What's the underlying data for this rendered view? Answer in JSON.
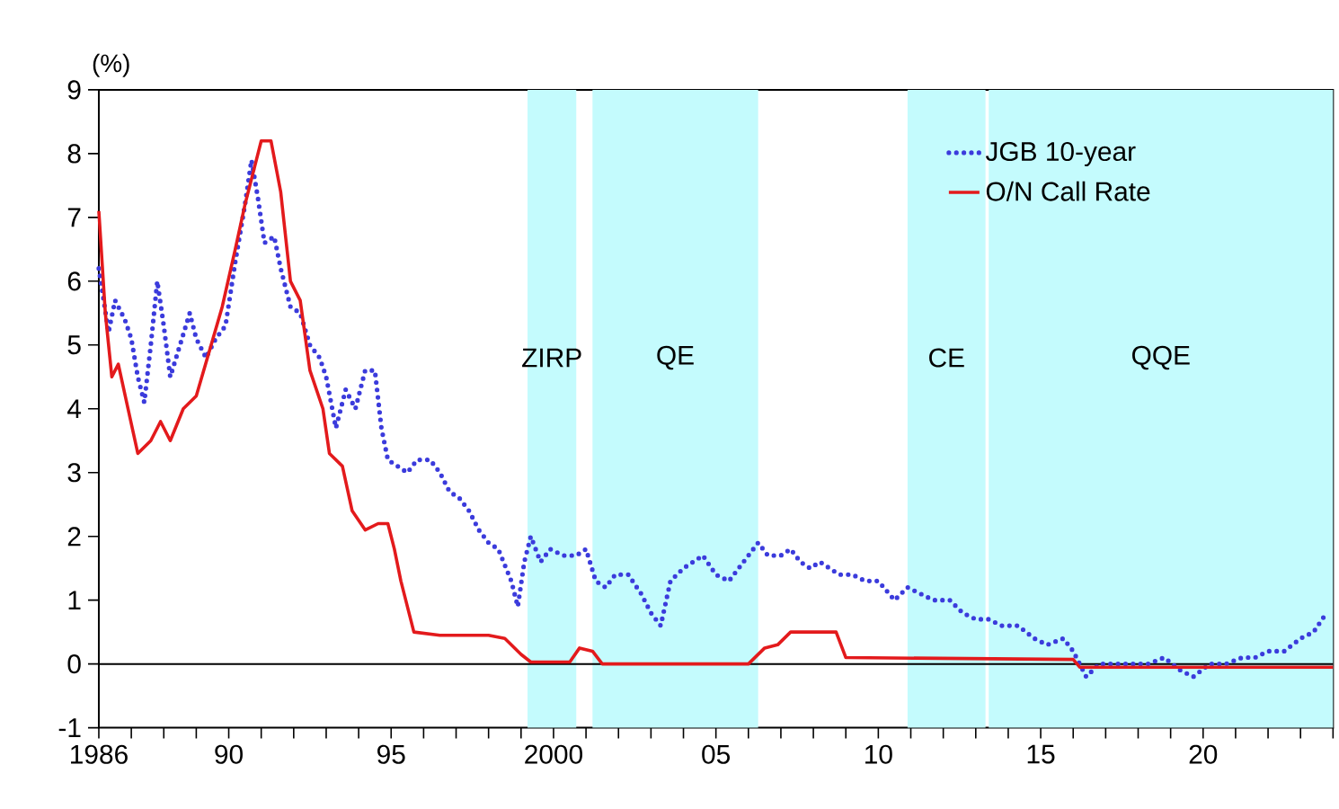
{
  "chart_data": {
    "type": "line",
    "ylabel": "(%)",
    "xlim": [
      1986,
      2024
    ],
    "ylim": [
      -1,
      9
    ],
    "yticks": [
      -1,
      0,
      1,
      2,
      3,
      4,
      5,
      6,
      7,
      8,
      9
    ],
    "xticks": [
      {
        "value": 1986,
        "label": "1986"
      },
      {
        "value": 1987,
        "label": null
      },
      {
        "value": 1988,
        "label": null
      },
      {
        "value": 1989,
        "label": null
      },
      {
        "value": 1990,
        "label": "90"
      },
      {
        "value": 1991,
        "label": null
      },
      {
        "value": 1992,
        "label": null
      },
      {
        "value": 1993,
        "label": null
      },
      {
        "value": 1994,
        "label": null
      },
      {
        "value": 1995,
        "label": "95"
      },
      {
        "value": 1996,
        "label": null
      },
      {
        "value": 1997,
        "label": null
      },
      {
        "value": 1998,
        "label": null
      },
      {
        "value": 1999,
        "label": null
      },
      {
        "value": 2000,
        "label": "2000"
      },
      {
        "value": 2001,
        "label": null
      },
      {
        "value": 2002,
        "label": null
      },
      {
        "value": 2003,
        "label": null
      },
      {
        "value": 2004,
        "label": null
      },
      {
        "value": 2005,
        "label": "05"
      },
      {
        "value": 2006,
        "label": null
      },
      {
        "value": 2007,
        "label": null
      },
      {
        "value": 2008,
        "label": null
      },
      {
        "value": 2009,
        "label": null
      },
      {
        "value": 2010,
        "label": "10"
      },
      {
        "value": 2011,
        "label": null
      },
      {
        "value": 2012,
        "label": null
      },
      {
        "value": 2013,
        "label": null
      },
      {
        "value": 2014,
        "label": null
      },
      {
        "value": 2015,
        "label": "15"
      },
      {
        "value": 2016,
        "label": null
      },
      {
        "value": 2017,
        "label": null
      },
      {
        "value": 2018,
        "label": null
      },
      {
        "value": 2019,
        "label": null
      },
      {
        "value": 2020,
        "label": "20"
      },
      {
        "value": 2021,
        "label": null
      },
      {
        "value": 2022,
        "label": null
      },
      {
        "value": 2023,
        "label": null
      },
      {
        "value": 2024,
        "label": null
      }
    ],
    "legend": "top right",
    "grid": false,
    "bands": [
      {
        "axis": "x",
        "from": 1999.2,
        "to": 2000.7,
        "label": "ZIRP",
        "color": "#c4fbfd"
      },
      {
        "axis": "x",
        "from": 2001.2,
        "to": 2006.3,
        "label": "QE",
        "color": "#c4fbfd"
      },
      {
        "axis": "x",
        "from": 2010.9,
        "to": 2013.3,
        "label": "CE",
        "color": "#c4fbfd"
      },
      {
        "axis": "x",
        "from": 2013.4,
        "to": 2024,
        "label": "QQE",
        "color": "#c4fbfd"
      }
    ],
    "ref_lines": [
      {
        "axis": "y",
        "value": 0,
        "color": "#000000"
      }
    ],
    "series": [
      {
        "name": "JGB 10-year",
        "color": "#3b3bdc",
        "line_style": "dotted",
        "x": [
          1986.0,
          1986.3,
          1986.5,
          1986.8,
          1987.0,
          1987.2,
          1987.4,
          1987.6,
          1987.8,
          1988.0,
          1988.2,
          1988.5,
          1988.8,
          1989.0,
          1989.3,
          1989.6,
          1989.9,
          1990.2,
          1990.5,
          1990.7,
          1990.9,
          1991.1,
          1991.4,
          1991.6,
          1991.9,
          1992.2,
          1992.5,
          1992.8,
          1993.0,
          1993.3,
          1993.6,
          1993.9,
          1994.2,
          1994.5,
          1994.7,
          1994.9,
          1995.2,
          1995.5,
          1995.8,
          1996.2,
          1996.5,
          1996.8,
          1997.1,
          1997.4,
          1997.7,
          1998.0,
          1998.3,
          1998.7,
          1998.9,
          1999.1,
          1999.3,
          1999.6,
          1999.9,
          2000.3,
          2000.7,
          2001.0,
          2001.3,
          2001.6,
          2001.9,
          2002.3,
          2002.7,
          2003.0,
          2003.3,
          2003.6,
          2004.0,
          2004.3,
          2004.6,
          2005.0,
          2005.4,
          2005.7,
          2006.0,
          2006.3,
          2006.6,
          2007.0,
          2007.3,
          2007.6,
          2007.9,
          2008.2,
          2008.5,
          2008.8,
          2009.2,
          2009.6,
          2010.0,
          2010.5,
          2010.9,
          2011.3,
          2011.7,
          2012.2,
          2012.6,
          2013.0,
          2013.4,
          2013.8,
          2014.3,
          2014.8,
          2015.2,
          2015.7,
          2016.0,
          2016.4,
          2016.8,
          2017.3,
          2017.8,
          2018.3,
          2018.8,
          2019.3,
          2019.7,
          2020.2,
          2020.7,
          2021.2,
          2021.6,
          2022.0,
          2022.5,
          2023.0,
          2023.4,
          2023.8
        ],
        "values": [
          6.2,
          5.2,
          5.7,
          5.4,
          5.1,
          4.5,
          4.1,
          5.0,
          6.0,
          5.3,
          4.5,
          5.0,
          5.5,
          5.1,
          4.8,
          5.1,
          5.3,
          6.3,
          7.2,
          7.9,
          7.3,
          6.6,
          6.7,
          6.2,
          5.6,
          5.5,
          5.0,
          4.8,
          4.5,
          3.7,
          4.3,
          4.0,
          4.6,
          4.6,
          3.7,
          3.2,
          3.1,
          3.0,
          3.2,
          3.2,
          3.0,
          2.7,
          2.6,
          2.4,
          2.1,
          1.9,
          1.8,
          1.3,
          0.9,
          1.6,
          2.0,
          1.6,
          1.8,
          1.7,
          1.7,
          1.8,
          1.3,
          1.2,
          1.4,
          1.4,
          1.1,
          0.8,
          0.6,
          1.3,
          1.5,
          1.6,
          1.7,
          1.4,
          1.3,
          1.5,
          1.7,
          1.9,
          1.7,
          1.7,
          1.8,
          1.6,
          1.5,
          1.6,
          1.5,
          1.4,
          1.4,
          1.3,
          1.3,
          1.0,
          1.2,
          1.1,
          1.0,
          1.0,
          0.8,
          0.7,
          0.7,
          0.6,
          0.6,
          0.4,
          0.3,
          0.4,
          0.2,
          -0.2,
          0.0,
          0.0,
          0.0,
          0.0,
          0.1,
          -0.1,
          -0.2,
          0.0,
          0.0,
          0.1,
          0.1,
          0.2,
          0.2,
          0.4,
          0.5,
          0.8
        ]
      },
      {
        "name": "O/N Call Rate",
        "color": "#e31a1c",
        "line_style": "solid",
        "x": [
          1986.0,
          1986.2,
          1986.4,
          1986.6,
          1986.9,
          1987.2,
          1987.6,
          1987.9,
          1988.2,
          1988.6,
          1989.0,
          1989.4,
          1989.8,
          1990.2,
          1990.5,
          1990.8,
          1991.0,
          1991.3,
          1991.6,
          1991.9,
          1992.2,
          1992.5,
          1992.9,
          1993.1,
          1993.5,
          1993.8,
          1994.2,
          1994.6,
          1994.9,
          1995.1,
          1995.3,
          1995.7,
          1996.5,
          1997.5,
          1998.0,
          1998.5,
          1999.0,
          1999.3,
          2000.5,
          2000.8,
          2001.2,
          2001.5,
          2006.0,
          2006.5,
          2006.9,
          2007.3,
          2008.7,
          2009.0,
          2016.0,
          2016.2,
          2024.0
        ],
        "values": [
          7.1,
          5.5,
          4.5,
          4.7,
          4.0,
          3.3,
          3.5,
          3.8,
          3.5,
          4.0,
          4.2,
          4.9,
          5.6,
          6.5,
          7.2,
          7.8,
          8.2,
          8.2,
          7.4,
          6.0,
          5.7,
          4.6,
          4.0,
          3.3,
          3.1,
          2.4,
          2.1,
          2.2,
          2.2,
          1.8,
          1.3,
          0.5,
          0.45,
          0.45,
          0.45,
          0.4,
          0.15,
          0.03,
          0.03,
          0.25,
          0.2,
          0.0,
          0.0,
          0.25,
          0.3,
          0.5,
          0.5,
          0.1,
          0.07,
          -0.05,
          -0.05
        ]
      }
    ]
  }
}
